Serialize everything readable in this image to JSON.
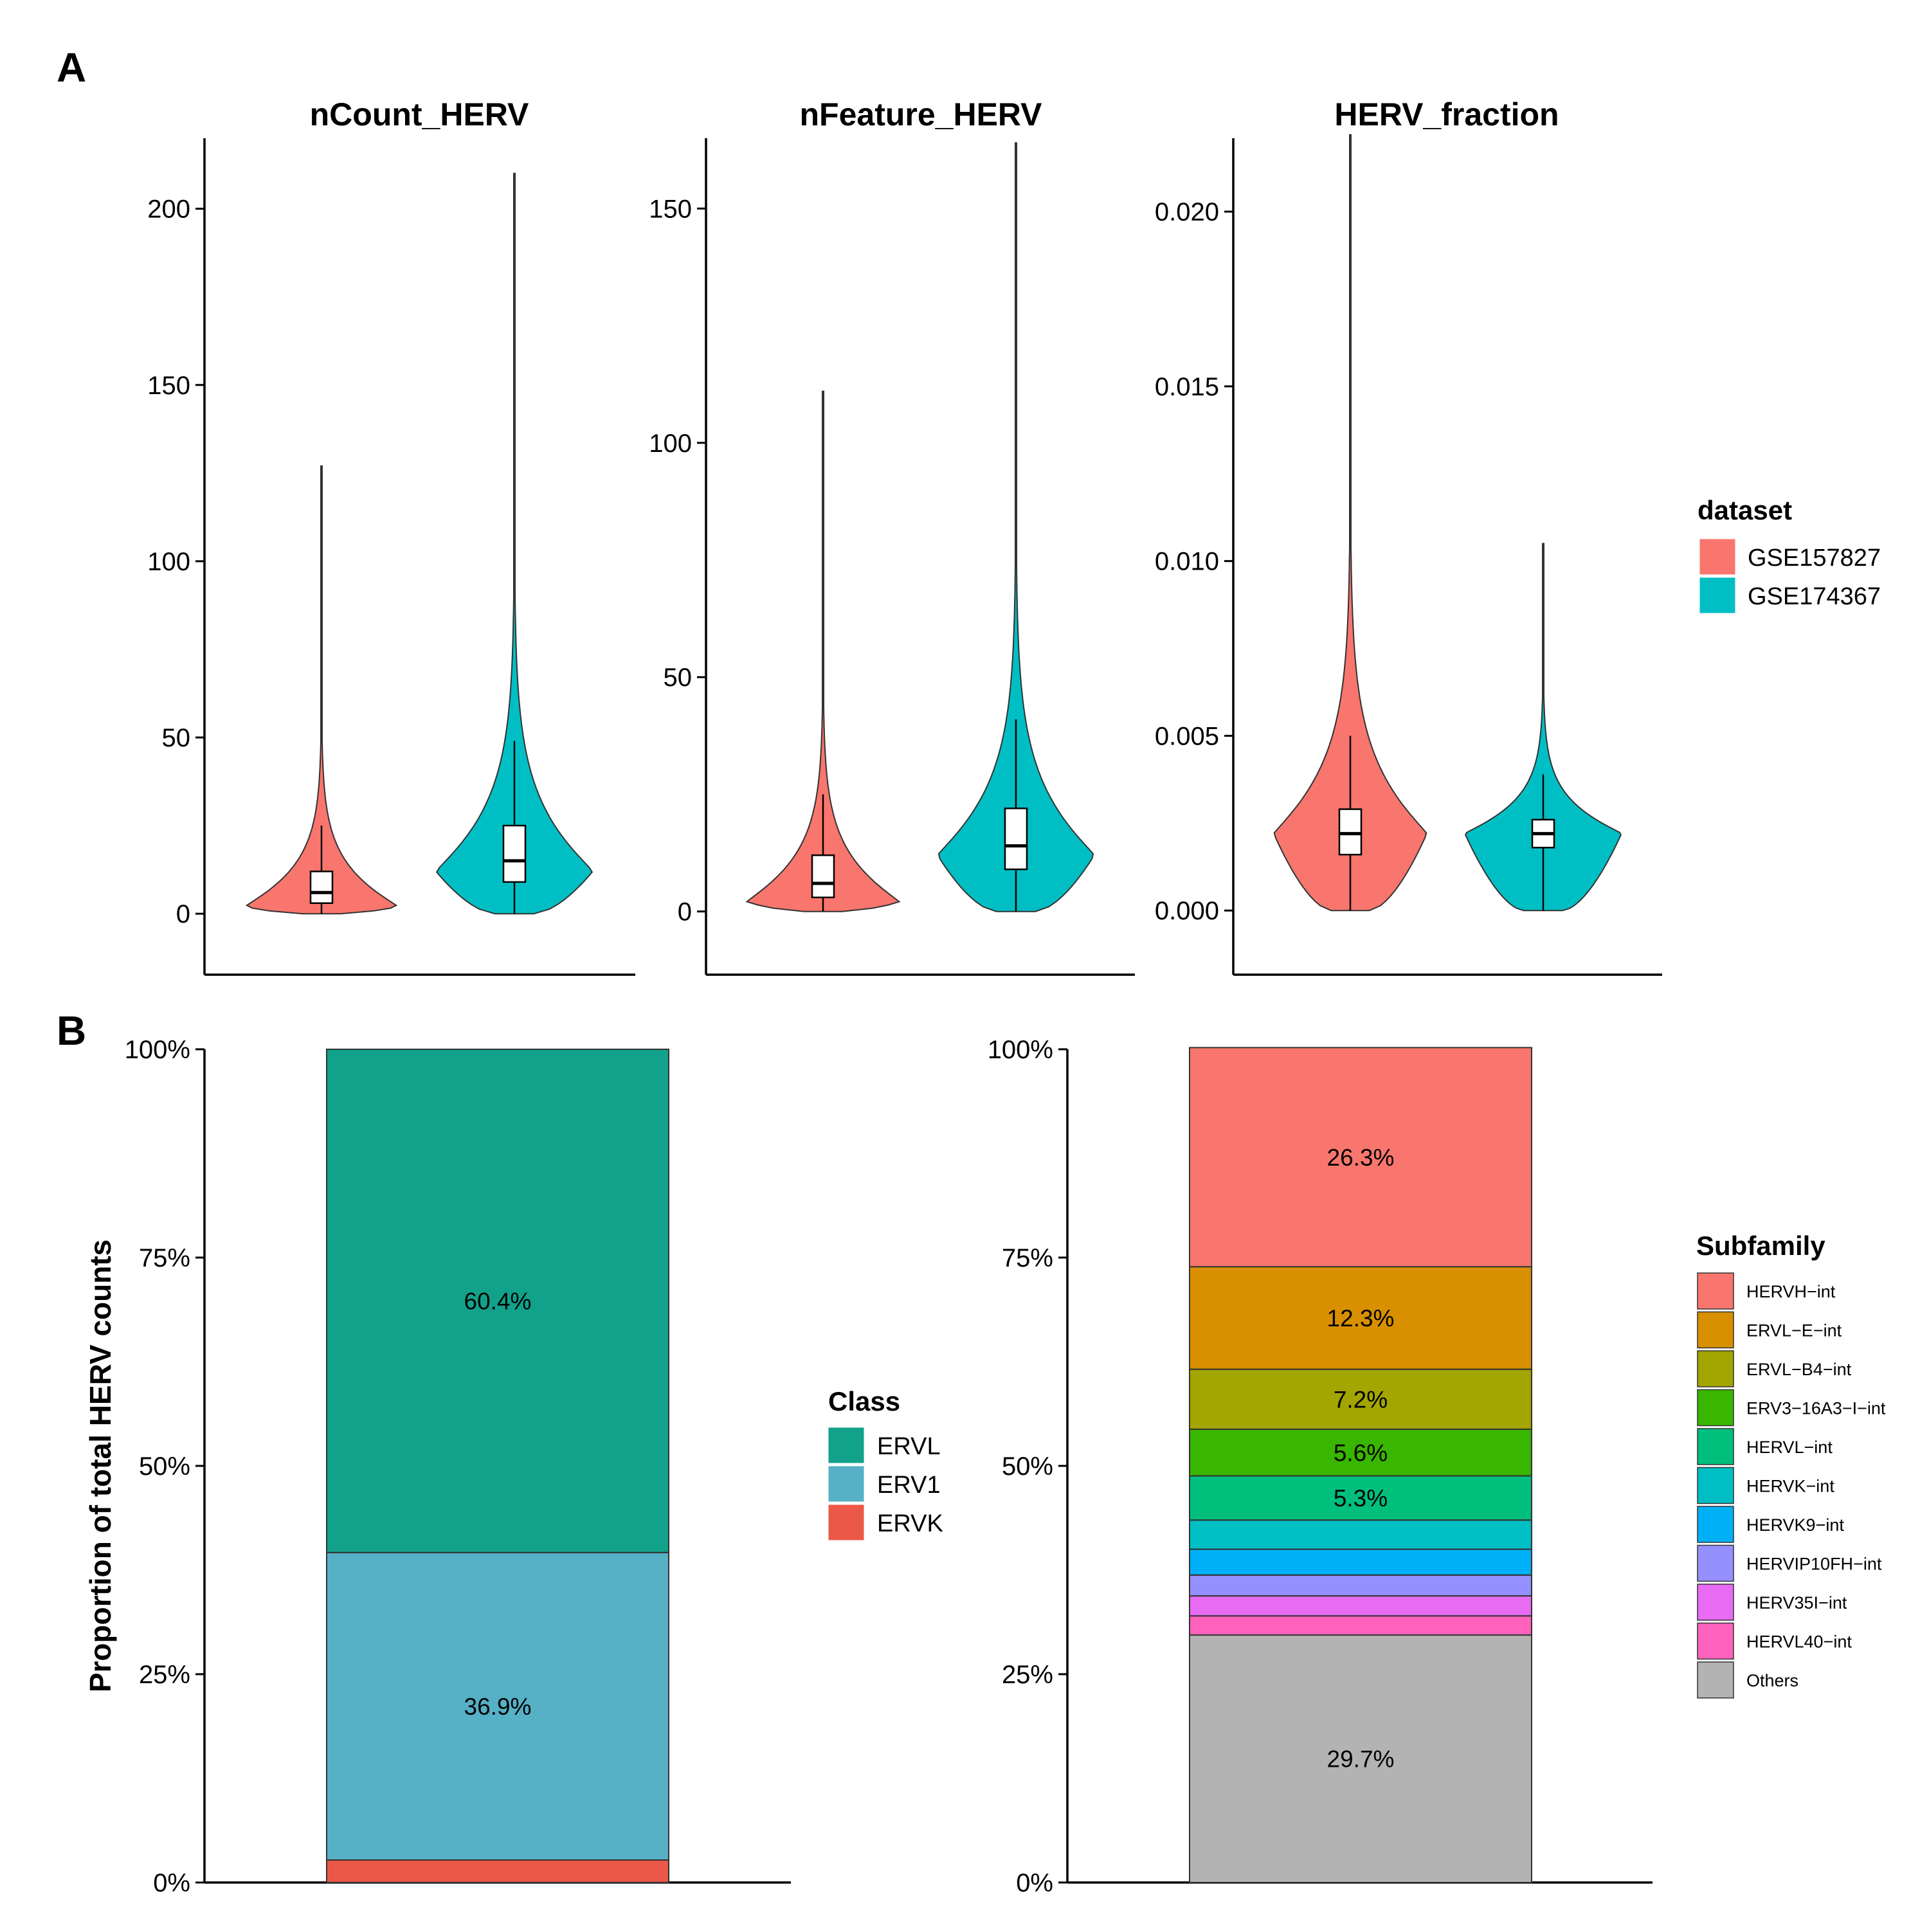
{
  "panel_labels": [
    "A",
    "B"
  ],
  "chart_data": [
    {
      "type": "violin",
      "title": "nCount_HERV",
      "ylim": [
        -10,
        220
      ],
      "yticks": [
        0,
        50,
        100,
        150,
        200
      ],
      "ytick_labels": [
        "0",
        "50",
        "100",
        "150",
        "200"
      ],
      "groups": [
        {
          "name": "GSE157827",
          "min": 0,
          "q1": 3,
          "median": 6,
          "q3": 12,
          "whisker_high": 25,
          "max": 127,
          "mode": 2,
          "widest": 0.85
        },
        {
          "name": "GSE174367",
          "min": 0,
          "q1": 9,
          "median": 15,
          "q3": 25,
          "whisker_high": 49,
          "max": 210,
          "mode": 12,
          "widest": 0.87
        }
      ]
    },
    {
      "type": "violin",
      "title": "nFeature_HERV",
      "ylim": [
        -8,
        165
      ],
      "yticks": [
        0,
        50,
        100,
        150
      ],
      "ytick_labels": [
        "0",
        "50",
        "100",
        "150"
      ],
      "groups": [
        {
          "name": "GSE157827",
          "min": 0,
          "q1": 3,
          "median": 6,
          "q3": 12,
          "whisker_high": 25,
          "max": 111,
          "mode": 2,
          "widest": 0.85
        },
        {
          "name": "GSE174367",
          "min": 0,
          "q1": 9,
          "median": 14,
          "q3": 22,
          "whisker_high": 41,
          "max": 164,
          "mode": 12,
          "widest": 0.87
        }
      ]
    },
    {
      "type": "violin",
      "title": "HERV_fraction",
      "ylim": [
        -0.0011,
        0.0221
      ],
      "yticks": [
        0,
        0.005,
        0.01,
        0.015,
        0.02
      ],
      "ytick_labels": [
        "0.000",
        "0.005",
        "0.010",
        "0.015",
        "0.020"
      ],
      "groups": [
        {
          "name": "GSE157827",
          "min": 0,
          "q1": 0.0016,
          "median": 0.0022,
          "q3": 0.0029,
          "whisker_high": 0.005,
          "max": 0.0222,
          "mode": 0.0022,
          "widest": 0.85
        },
        {
          "name": "GSE174367",
          "min": 0,
          "q1": 0.0018,
          "median": 0.0022,
          "q3": 0.0026,
          "whisker_high": 0.0039,
          "max": 0.0105,
          "mode": 0.0022,
          "widest": 0.87
        }
      ]
    },
    {
      "type": "stacked-bar",
      "ylabel": "Proportion of total HERV counts",
      "ylim": [
        0,
        100
      ],
      "yticks": [
        0,
        25,
        50,
        75,
        100
      ],
      "ytick_labels": [
        "0%",
        "25%",
        "50%",
        "75%",
        "100%"
      ],
      "segments": [
        {
          "name": "ERVK",
          "value": 2.7,
          "label": ""
        },
        {
          "name": "ERV1",
          "value": 36.9,
          "label": "36.9%"
        },
        {
          "name": "ERVL",
          "value": 60.4,
          "label": "60.4%"
        }
      ]
    },
    {
      "type": "stacked-bar",
      "ylim": [
        0,
        100
      ],
      "yticks": [
        0,
        25,
        50,
        75,
        100
      ],
      "ytick_labels": [
        "0%",
        "25%",
        "50%",
        "75%",
        "100%"
      ],
      "segments": [
        {
          "name": "Others",
          "value": 29.7,
          "label": "29.7%"
        },
        {
          "name": "HERVL40-int",
          "value": 2.3,
          "label": ""
        },
        {
          "name": "HERV35I-int",
          "value": 2.4,
          "label": ""
        },
        {
          "name": "HERVIP10FH-int",
          "value": 2.5,
          "label": ""
        },
        {
          "name": "HERVK9-int",
          "value": 3.1,
          "label": ""
        },
        {
          "name": "HERVK-int",
          "value": 3.5,
          "label": ""
        },
        {
          "name": "HERVL-int",
          "value": 5.3,
          "label": "5.3%"
        },
        {
          "name": "ERV3-16A3-I-int",
          "value": 5.6,
          "label": "5.6%"
        },
        {
          "name": "ERVL-B4-int",
          "value": 7.2,
          "label": "7.2%"
        },
        {
          "name": "ERVL-E-int",
          "value": 12.3,
          "label": "12.3%"
        },
        {
          "name": "HERVH-int",
          "value": 26.3,
          "label": "26.3%"
        }
      ]
    }
  ],
  "legends": {
    "dataset": {
      "title": "dataset",
      "items": [
        {
          "label": "GSE157827",
          "color": "#F8766D"
        },
        {
          "label": "GSE174367",
          "color": "#00BFC4"
        }
      ]
    },
    "class": {
      "title": "Class",
      "items": [
        {
          "label": "ERVL",
          "color": "#12A18A"
        },
        {
          "label": "ERV1",
          "color": "#56B0C6"
        },
        {
          "label": "ERVK",
          "color": "#EC5847"
        }
      ]
    },
    "subfamily": {
      "title": "Subfamily",
      "items": [
        {
          "label": "HERVH−int",
          "color": "#F8766D"
        },
        {
          "label": "ERVL−E−int",
          "color": "#D89000"
        },
        {
          "label": "ERVL−B4−int",
          "color": "#A3A500"
        },
        {
          "label": "ERV3−16A3−I−int",
          "color": "#39B600"
        },
        {
          "label": "HERVL−int",
          "color": "#00BF7D"
        },
        {
          "label": "HERVK−int",
          "color": "#00BFC4"
        },
        {
          "label": "HERVK9−int",
          "color": "#00B0F6"
        },
        {
          "label": "HERVIP10FH−int",
          "color": "#9590FF"
        },
        {
          "label": "HERV35I−int",
          "color": "#E76BF3"
        },
        {
          "label": "HERVL40−int",
          "color": "#FF62BC"
        },
        {
          "label": "Others",
          "color": "#B3B3B3"
        }
      ]
    }
  }
}
